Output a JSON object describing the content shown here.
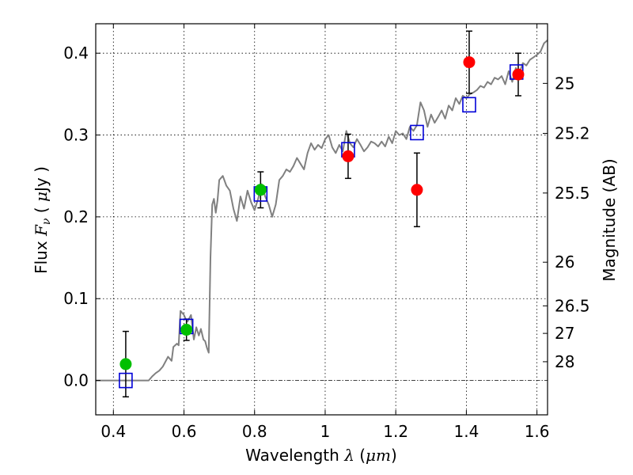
{
  "chart_data": {
    "type": "scatter",
    "xlabel": {
      "text": "Wavelength",
      "symbol": "λ",
      "open": " (",
      "unit": "μm",
      "close": ")"
    },
    "ylabel": {
      "text": "Flux",
      "symbol": "F",
      "subscript": "ν",
      "open": " ( ",
      "unit_prefix": "μ",
      "unit": "Jy",
      "close": " )"
    },
    "y2label": "Magnitude (AB)",
    "xlim": [
      0.35,
      1.63
    ],
    "ylim": [
      -0.042,
      0.436
    ],
    "grid": true,
    "x_ticks": [
      0.4,
      0.6,
      0.8,
      1.0,
      1.2,
      1.4,
      1.6
    ],
    "x_tick_labels": [
      "0.4",
      "0.6",
      "0.8",
      "1",
      "1.2",
      "1.4",
      "1.6"
    ],
    "y_ticks": [
      0.0,
      0.1,
      0.2,
      0.3,
      0.4
    ],
    "y_tick_labels": [
      "0.0",
      "0.1",
      "0.2",
      "0.3",
      "0.4"
    ],
    "mag_ticks": [
      25,
      25.2,
      25.5,
      26,
      26.5,
      27,
      28
    ],
    "mag_tick_labels": [
      "25",
      "25.2",
      "25.5",
      "26",
      "26.5",
      "27",
      "28"
    ],
    "model_spectrum": {
      "color": "#808080",
      "x": [
        0.35,
        0.5,
        0.51,
        0.52,
        0.53,
        0.54,
        0.555,
        0.565,
        0.57,
        0.58,
        0.585,
        0.59,
        0.6,
        0.605,
        0.61,
        0.62,
        0.628,
        0.635,
        0.642,
        0.648,
        0.655,
        0.66,
        0.665,
        0.67,
        0.675,
        0.68,
        0.685,
        0.69,
        0.695,
        0.7,
        0.71,
        0.72,
        0.73,
        0.74,
        0.75,
        0.76,
        0.77,
        0.78,
        0.79,
        0.8,
        0.81,
        0.82,
        0.83,
        0.84,
        0.85,
        0.86,
        0.87,
        0.88,
        0.89,
        0.9,
        0.91,
        0.92,
        0.93,
        0.94,
        0.95,
        0.96,
        0.97,
        0.98,
        0.99,
        1.0,
        1.01,
        1.02,
        1.03,
        1.04,
        1.05,
        1.06,
        1.07,
        1.08,
        1.09,
        1.1,
        1.11,
        1.12,
        1.13,
        1.14,
        1.15,
        1.16,
        1.17,
        1.18,
        1.19,
        1.2,
        1.21,
        1.22,
        1.23,
        1.24,
        1.25,
        1.26,
        1.27,
        1.28,
        1.29,
        1.3,
        1.31,
        1.32,
        1.33,
        1.34,
        1.35,
        1.36,
        1.37,
        1.38,
        1.39,
        1.4,
        1.41,
        1.42,
        1.43,
        1.44,
        1.45,
        1.46,
        1.47,
        1.48,
        1.49,
        1.5,
        1.51,
        1.52,
        1.53,
        1.54,
        1.55,
        1.56,
        1.57,
        1.58,
        1.59,
        1.6,
        1.61,
        1.62,
        1.63
      ],
      "y": [
        0.0,
        0.0,
        0.005,
        0.009,
        0.012,
        0.017,
        0.029,
        0.024,
        0.041,
        0.045,
        0.043,
        0.085,
        0.08,
        0.075,
        0.072,
        0.08,
        0.05,
        0.065,
        0.055,
        0.063,
        0.05,
        0.048,
        0.04,
        0.034,
        0.15,
        0.215,
        0.222,
        0.205,
        0.22,
        0.245,
        0.25,
        0.238,
        0.232,
        0.21,
        0.195,
        0.225,
        0.21,
        0.232,
        0.218,
        0.208,
        0.222,
        0.24,
        0.225,
        0.215,
        0.2,
        0.215,
        0.245,
        0.25,
        0.258,
        0.255,
        0.262,
        0.272,
        0.265,
        0.258,
        0.278,
        0.29,
        0.282,
        0.288,
        0.284,
        0.295,
        0.3,
        0.285,
        0.278,
        0.288,
        0.28,
        0.305,
        0.29,
        0.285,
        0.295,
        0.288,
        0.28,
        0.285,
        0.292,
        0.29,
        0.286,
        0.292,
        0.286,
        0.298,
        0.29,
        0.305,
        0.3,
        0.302,
        0.295,
        0.31,
        0.305,
        0.312,
        0.34,
        0.33,
        0.31,
        0.325,
        0.315,
        0.322,
        0.33,
        0.32,
        0.336,
        0.33,
        0.345,
        0.338,
        0.348,
        0.345,
        0.35,
        0.352,
        0.355,
        0.36,
        0.358,
        0.365,
        0.362,
        0.37,
        0.368,
        0.372,
        0.362,
        0.378,
        0.365,
        0.382,
        0.375,
        0.388,
        0.385,
        0.392,
        0.395,
        0.398,
        0.402,
        0.412,
        0.416
      ]
    },
    "series": [
      {
        "name": "",
        "marker": "square",
        "color": "#0000d8",
        "fill": "none",
        "x": [
          0.435,
          0.607,
          0.817,
          1.065,
          1.26,
          1.408,
          1.542
        ],
        "y": [
          0.0,
          0.066,
          0.228,
          0.282,
          0.303,
          0.337,
          0.377
        ]
      },
      {
        "name": "",
        "marker": "circle",
        "color": "#00bf00",
        "x": [
          0.435,
          0.607,
          0.817
        ],
        "y": [
          0.02,
          0.062,
          0.233
        ],
        "yerr": [
          0.04,
          0.013,
          0.022
        ]
      },
      {
        "name": "",
        "marker": "circle",
        "color": "#ff0000",
        "x": [
          1.065,
          1.26,
          1.408,
          1.547
        ],
        "y": [
          0.274,
          0.233,
          0.389,
          0.374
        ],
        "yerr": [
          0.027,
          0.045,
          0.038,
          0.026
        ]
      }
    ]
  }
}
